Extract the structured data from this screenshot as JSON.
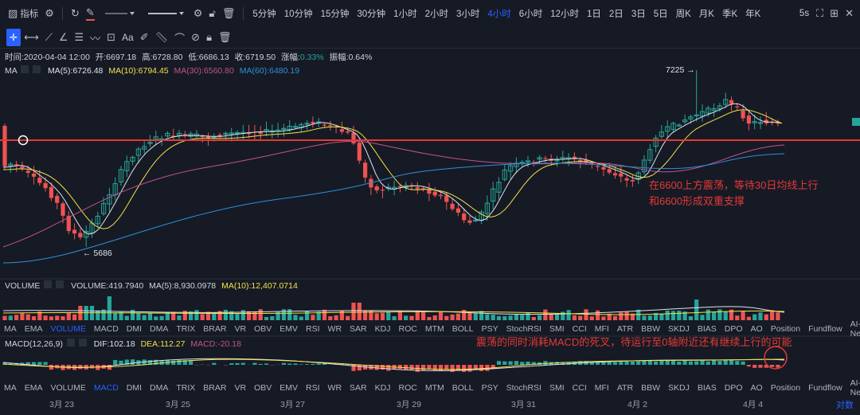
{
  "toolbar": {
    "indicator_label": "指标",
    "timeframes": [
      "5分钟",
      "10分钟",
      "15分钟",
      "30分钟",
      "1小时",
      "2小时",
      "3小时",
      "4小时",
      "6小时",
      "12小时",
      "1日",
      "2日",
      "3日",
      "5日",
      "周K",
      "月K",
      "季K",
      "年K"
    ],
    "active_timeframe": "4小时",
    "refresh_label": "5s"
  },
  "drawing_tools": {
    "text_tool_label": "Aa"
  },
  "ohlc": {
    "time_label": "时间:",
    "time": "2020-04-04 12:00",
    "open_label": "开:",
    "open": "6697.18",
    "high_label": "高:",
    "high": "6728.80",
    "low_label": "低:",
    "low": "6686.13",
    "close_label": "收:",
    "close": "6719.50",
    "change_label": "涨幅:",
    "change": "0.33%",
    "amplitude_label": "振幅:",
    "amplitude": "0.64%"
  },
  "ma_legend": {
    "label": "MA",
    "ma5": "MA(5):6726.48",
    "ma10": "MA(10):6794.45",
    "ma30": "MA(30):6560.80",
    "ma60": "MA(60):6480.19"
  },
  "price_marks": {
    "high": "7225",
    "low": "5686"
  },
  "volume_legend": {
    "label": "VOLUME",
    "volume": "VOLUME:419.7940",
    "ma5": "MA(5):8,930.0978",
    "ma10": "MA(10):12,407.0714"
  },
  "indicator_tabs": [
    "MA",
    "EMA",
    "VOLUME",
    "MACD",
    "DMI",
    "DMA",
    "TRIX",
    "BRAR",
    "VR",
    "OBV",
    "EMV",
    "RSI",
    "WR",
    "SAR",
    "KDJ",
    "ROC",
    "MTM",
    "BOLL",
    "PSY",
    "StochRSI",
    "SMI",
    "CCI",
    "MFI",
    "ATR",
    "BBW",
    "SKDJ",
    "BIAS",
    "DPO",
    "AO",
    "Position",
    "Fundflow",
    "AI-NetVOL"
  ],
  "indicator_tabs_active_1": "VOLUME",
  "indicator_tabs_active_2": "MACD",
  "macd_legend": {
    "label": "MACD(12,26,9)",
    "dif": "DIF:102.18",
    "dea": "DEA:112.27",
    "macd": "MACD:-20.18"
  },
  "annotations": {
    "main_line1": "在6600上方震荡，等待30日均线上行",
    "main_line2": "和6600形成双重支撑",
    "macd_note": "震荡的同时消耗MACD的死叉，待运行至0轴附近还有继续上行的可能"
  },
  "x_axis": [
    "3月 23",
    "3月 25",
    "3月 27",
    "3月 29",
    "3月 31",
    "4月 2",
    "4月 4"
  ],
  "corner_label": "对数",
  "colors": {
    "up": "#26a69a",
    "down": "#ef5350",
    "ma5": "#e0e3eb",
    "ma10": "#f3e14a",
    "ma30": "#c0528f",
    "ma60": "#2e8fd8",
    "red_line": "#e53935",
    "accent": "#2962ff"
  }
}
